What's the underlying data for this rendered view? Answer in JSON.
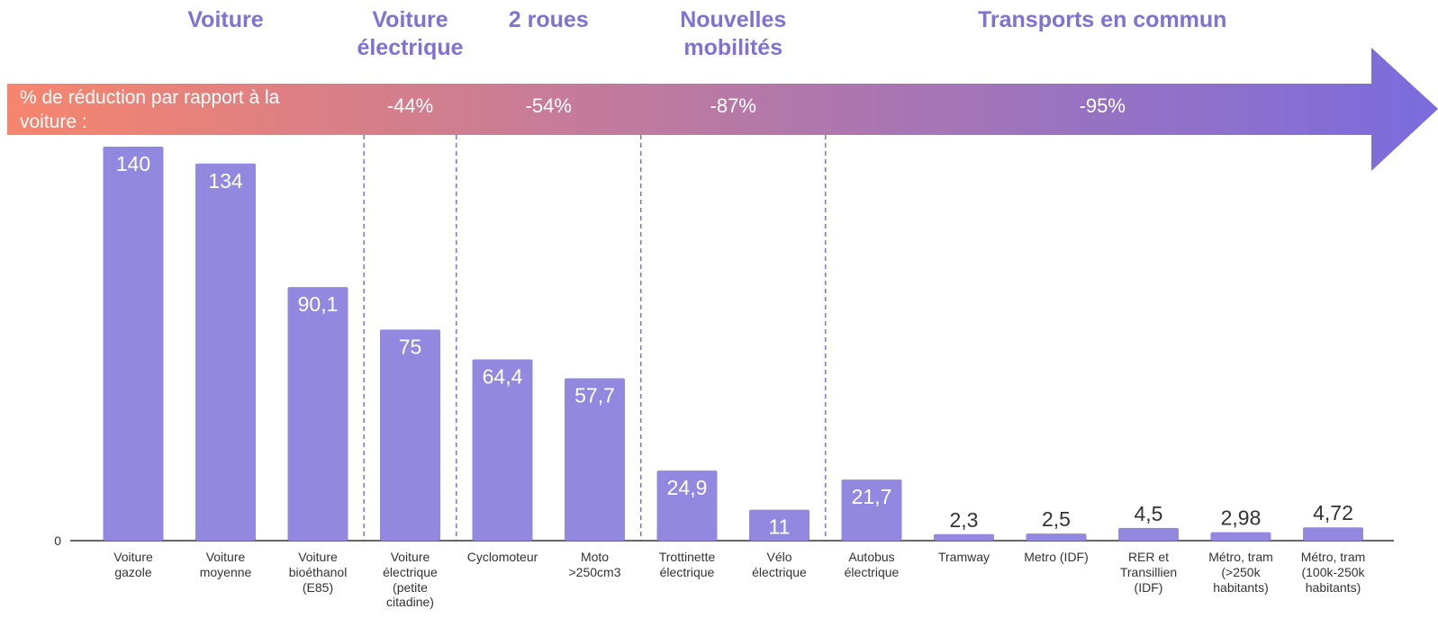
{
  "chart_data": {
    "type": "bar",
    "categories": [
      "Voiture\ngazole",
      "Voiture\nmoyenne",
      "Voiture\nbioéthanol\n(E85)",
      "Voiture\nélectrique\n(petite\ncitadine)",
      "Cyclomoteur",
      "Moto\n>250cm3",
      "Trottinette\nélectrique",
      "Vélo\nélectrique",
      "Autobus\nélectrique",
      "Tramway",
      "Metro (IDF)",
      "RER et\nTransillien\n(IDF)",
      "Métro, tram\n(>250k\nhabitants)",
      "Métro, tram\n(100k-250k\nhabitants)"
    ],
    "values": [
      140,
      134,
      90.1,
      75,
      64.4,
      57.7,
      24.9,
      11,
      21.7,
      2.3,
      2.5,
      4.5,
      2.98,
      4.72
    ],
    "value_labels": [
      "140",
      "134",
      "90,1",
      "75",
      "64,4",
      "57,7",
      "24,9",
      "11",
      "21,7",
      "2,3",
      "2,5",
      "4,5",
      "2,98",
      "4,72"
    ],
    "color": "#9288e0",
    "ylim": [
      0,
      140
    ],
    "yticks": [
      0
    ],
    "reduction_title": "% de réduction par rapport à la\nvoiture :",
    "groups": [
      {
        "name": "Voiture"
      },
      {
        "name": "Voiture\nélectrique",
        "reduction": "-44%"
      },
      {
        "name": "2 roues",
        "reduction": "-54%"
      },
      {
        "name": "Nouvelles\nmobilités",
        "reduction": "-87%"
      },
      {
        "name": "Transports en commun",
        "reduction": "-95%"
      }
    ]
  }
}
